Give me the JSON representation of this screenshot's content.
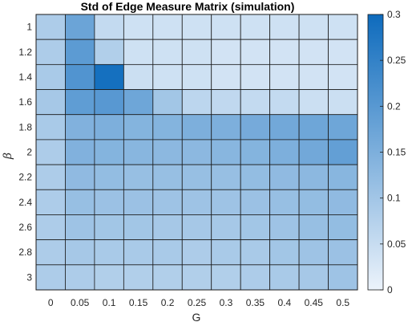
{
  "chart_data": {
    "type": "heatmap",
    "title": "Std of Edge Measure Matrix (simulation)",
    "xlabel": "G",
    "ylabel": "β",
    "x": [
      "0",
      "0.05",
      "0.1",
      "0.15",
      "0.2",
      "0.25",
      "0.3",
      "0.35",
      "0.4",
      "0.45",
      "0.5"
    ],
    "y": [
      "1",
      "1.2",
      "1.4",
      "1.6",
      "1.8",
      "2",
      "2.2",
      "2.4",
      "2.6",
      "2.8",
      "3"
    ],
    "values": [
      [
        0.085,
        0.175,
        0.055,
        0.04,
        0.04,
        0.04,
        0.04,
        0.04,
        0.04,
        0.04,
        0.04
      ],
      [
        0.085,
        0.195,
        0.08,
        0.04,
        0.04,
        0.04,
        0.035,
        0.035,
        0.035,
        0.035,
        0.035
      ],
      [
        0.09,
        0.21,
        0.29,
        0.045,
        0.04,
        0.04,
        0.035,
        0.035,
        0.035,
        0.035,
        0.035
      ],
      [
        0.095,
        0.19,
        0.2,
        0.17,
        0.1,
        0.065,
        0.06,
        0.055,
        0.055,
        0.045,
        0.045
      ],
      [
        0.09,
        0.145,
        0.15,
        0.14,
        0.14,
        0.15,
        0.15,
        0.16,
        0.165,
        0.17,
        0.17
      ],
      [
        0.085,
        0.145,
        0.14,
        0.135,
        0.13,
        0.13,
        0.135,
        0.14,
        0.15,
        0.165,
        0.185
      ],
      [
        0.085,
        0.125,
        0.12,
        0.115,
        0.115,
        0.115,
        0.115,
        0.12,
        0.125,
        0.13,
        0.135
      ],
      [
        0.085,
        0.115,
        0.11,
        0.11,
        0.105,
        0.105,
        0.105,
        0.11,
        0.115,
        0.12,
        0.125
      ],
      [
        0.085,
        0.105,
        0.1,
        0.1,
        0.095,
        0.095,
        0.095,
        0.1,
        0.105,
        0.115,
        0.12
      ],
      [
        0.085,
        0.095,
        0.09,
        0.09,
        0.09,
        0.085,
        0.09,
        0.09,
        0.1,
        0.105,
        0.11
      ],
      [
        0.085,
        0.085,
        0.08,
        0.08,
        0.08,
        0.08,
        0.08,
        0.085,
        0.09,
        0.095,
        0.105
      ]
    ],
    "colorbar": {
      "range": [
        0,
        0.3
      ],
      "ticks": [
        "0",
        "0.05",
        "0.1",
        "0.15",
        "0.2",
        "0.25",
        "0.3"
      ],
      "color_low": "#ecf3fb",
      "color_high": "#0e6bbd"
    },
    "grid": true
  }
}
